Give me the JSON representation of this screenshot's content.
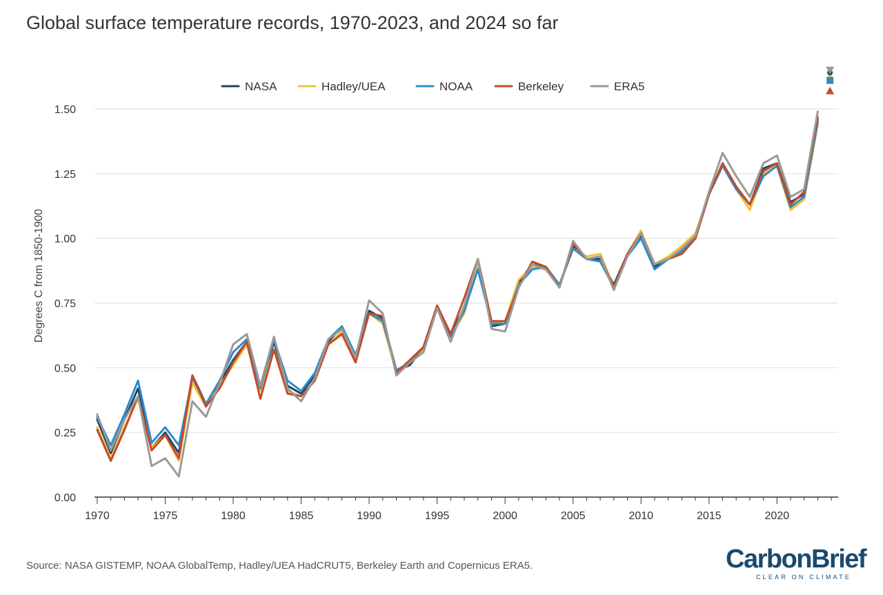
{
  "title": "Global surface temperature records, 1970-2023, and 2024 so far",
  "source": "Source: NASA GISTEMP, NOAA GlobalTemp, Hadley/UEA HadCRUT5, Berkeley Earth and Copernicus ERA5.",
  "logo": {
    "main": "CarbonBrief",
    "sub": "CLEAR ON CLIMATE"
  },
  "colors": {
    "grid": "#dddddd",
    "axis": "#333333",
    "text": "#333333",
    "brand": "#1a4a6e"
  },
  "chart_data": {
    "type": "line",
    "title": "Global surface temperature records, 1970-2023, and 2024 so far",
    "xlabel": "",
    "ylabel": "Degrees C from 1850-1900",
    "xlim": [
      1969.8,
      2024.5
    ],
    "ylim": [
      0,
      1.6
    ],
    "yticks": [
      0,
      0.25,
      0.5,
      0.75,
      1.0,
      1.25,
      1.5
    ],
    "ytick_labels": [
      "0.00",
      "0.25",
      "0.50",
      "0.75",
      "1.00",
      "1.25",
      "1.50"
    ],
    "xticks": [
      1970,
      1975,
      1980,
      1985,
      1990,
      1995,
      2000,
      2005,
      2010,
      2015,
      2020
    ],
    "xtick_labels": [
      "1970",
      "1975",
      "1980",
      "1985",
      "1990",
      "1995",
      "2000",
      "2005",
      "2010",
      "2015",
      "2020"
    ],
    "grid": true,
    "legend_position": "top-center",
    "x": [
      1970,
      1971,
      1972,
      1973,
      1974,
      1975,
      1976,
      1977,
      1978,
      1979,
      1980,
      1981,
      1982,
      1983,
      1984,
      1985,
      1986,
      1987,
      1988,
      1989,
      1990,
      1991,
      1992,
      1993,
      1994,
      1995,
      1996,
      1997,
      1998,
      1999,
      2000,
      2001,
      2002,
      2003,
      2004,
      2005,
      2006,
      2007,
      2008,
      2009,
      2010,
      2011,
      2012,
      2013,
      2014,
      2015,
      2016,
      2017,
      2018,
      2019,
      2020,
      2021,
      2022,
      2023
    ],
    "series": [
      {
        "name": "NASA",
        "color": "#1b4663",
        "values": [
          0.3,
          0.17,
          0.3,
          0.42,
          0.19,
          0.25,
          0.17,
          0.47,
          0.36,
          0.44,
          0.53,
          0.6,
          0.42,
          0.6,
          0.43,
          0.4,
          0.47,
          0.6,
          0.66,
          0.54,
          0.72,
          0.69,
          0.49,
          0.51,
          0.58,
          0.74,
          0.63,
          0.73,
          0.91,
          0.66,
          0.67,
          0.83,
          0.9,
          0.89,
          0.82,
          0.97,
          0.92,
          0.92,
          0.82,
          0.94,
          1.01,
          0.89,
          0.92,
          0.94,
          1.0,
          1.17,
          1.29,
          1.2,
          1.13,
          1.27,
          1.29,
          1.14,
          1.17,
          1.46
        ],
        "latest": 1.64
      },
      {
        "name": "Hadley/UEA",
        "color": "#f0c23a",
        "values": [
          0.27,
          0.15,
          0.27,
          0.38,
          0.19,
          0.24,
          0.14,
          0.44,
          0.35,
          0.43,
          0.51,
          0.59,
          0.41,
          0.57,
          0.41,
          0.39,
          0.45,
          0.59,
          0.64,
          0.53,
          0.71,
          0.67,
          0.48,
          0.52,
          0.57,
          0.73,
          0.62,
          0.71,
          0.9,
          0.67,
          0.68,
          0.84,
          0.89,
          0.88,
          0.82,
          0.96,
          0.93,
          0.94,
          0.81,
          0.94,
          1.03,
          0.9,
          0.93,
          0.97,
          1.02,
          1.17,
          1.28,
          1.19,
          1.11,
          1.25,
          1.28,
          1.11,
          1.15,
          1.44
        ],
        "latest": 1.62
      },
      {
        "name": "NOAA",
        "color": "#2f8bc9",
        "values": [
          0.31,
          0.2,
          0.32,
          0.45,
          0.21,
          0.27,
          0.2,
          0.46,
          0.36,
          0.45,
          0.56,
          0.61,
          0.42,
          0.61,
          0.45,
          0.41,
          0.48,
          0.61,
          0.66,
          0.55,
          0.71,
          0.68,
          0.49,
          0.52,
          0.58,
          0.73,
          0.62,
          0.72,
          0.88,
          0.67,
          0.67,
          0.82,
          0.88,
          0.89,
          0.82,
          0.96,
          0.92,
          0.91,
          0.81,
          0.93,
          1.0,
          0.88,
          0.92,
          0.95,
          1.0,
          1.17,
          1.28,
          1.19,
          1.13,
          1.24,
          1.28,
          1.12,
          1.16,
          1.45
        ],
        "latest": 1.61
      },
      {
        "name": "Berkeley",
        "color": "#c54a2b",
        "values": [
          0.26,
          0.14,
          0.26,
          0.39,
          0.18,
          0.24,
          0.15,
          0.47,
          0.35,
          0.42,
          0.52,
          0.6,
          0.38,
          0.57,
          0.4,
          0.39,
          0.45,
          0.59,
          0.63,
          0.52,
          0.71,
          0.7,
          0.48,
          0.53,
          0.58,
          0.74,
          0.63,
          0.77,
          0.92,
          0.68,
          0.68,
          0.81,
          0.91,
          0.89,
          0.81,
          0.98,
          0.92,
          0.93,
          0.81,
          0.94,
          1.02,
          0.9,
          0.92,
          0.94,
          1.0,
          1.17,
          1.29,
          1.2,
          1.13,
          1.26,
          1.29,
          1.13,
          1.18,
          1.47
        ],
        "latest": 1.57
      },
      {
        "name": "ERA5",
        "color": "#999999",
        "values": [
          0.32,
          0.18,
          0.3,
          0.39,
          0.12,
          0.15,
          0.08,
          0.37,
          0.31,
          0.44,
          0.59,
          0.63,
          0.43,
          0.62,
          0.42,
          0.37,
          0.46,
          0.61,
          0.65,
          0.54,
          0.76,
          0.71,
          0.47,
          0.52,
          0.56,
          0.73,
          0.6,
          0.74,
          0.92,
          0.65,
          0.64,
          0.81,
          0.9,
          0.88,
          0.81,
          0.99,
          0.92,
          0.93,
          0.8,
          0.93,
          1.02,
          0.9,
          0.92,
          0.96,
          1.01,
          1.18,
          1.33,
          1.24,
          1.16,
          1.29,
          1.32,
          1.16,
          1.19,
          1.49
        ],
        "latest": 1.65
      }
    ]
  }
}
